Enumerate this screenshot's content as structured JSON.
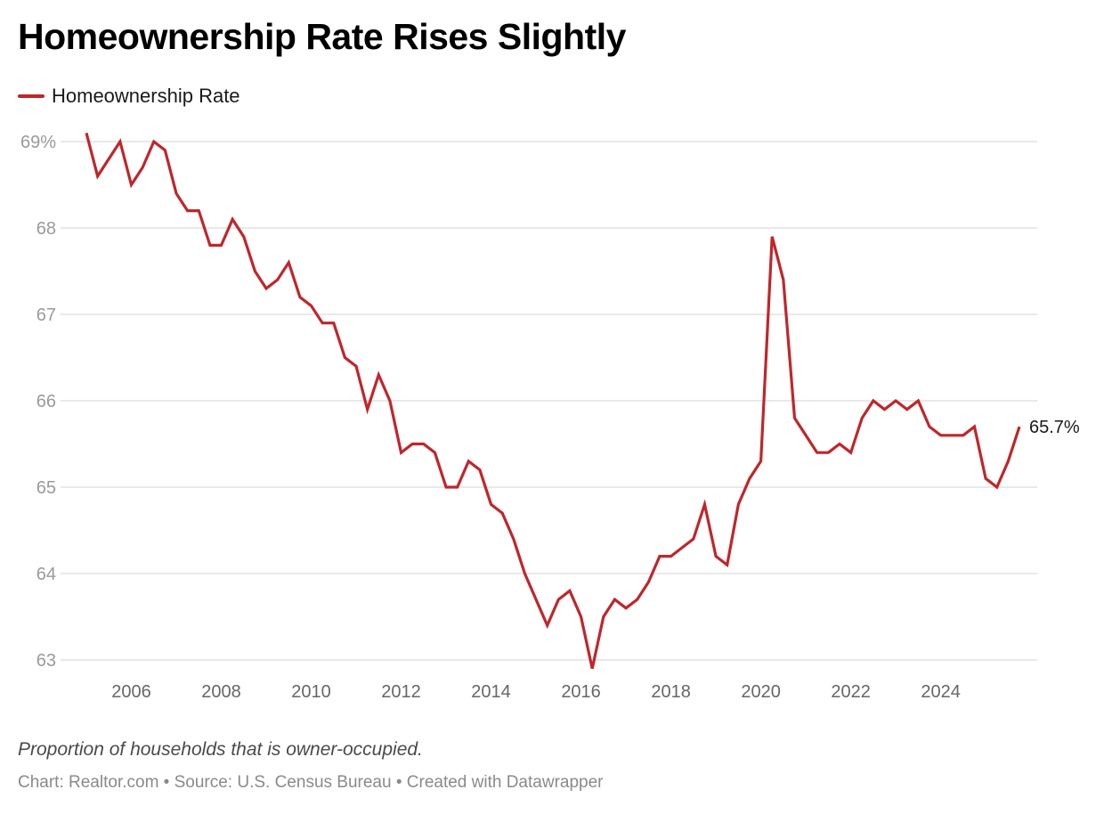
{
  "header": {
    "title": "Homeownership Rate Rises Slightly"
  },
  "legend": {
    "items": [
      {
        "label": "Homeownership Rate",
        "color": "#c0262b"
      }
    ]
  },
  "footer": {
    "note": "Proportion of households that is owner-occupied.",
    "source": "Chart: Realtor.com • Source: U.S. Census Bureau • Created with Datawrapper"
  },
  "chart_data": {
    "type": "line",
    "title": "Homeownership Rate Rises Slightly",
    "xlabel": "",
    "ylabel": "",
    "grid": true,
    "legend_position": "top-left",
    "ylim": [
      63,
      69
    ],
    "xlim": [
      2005,
      2025.75
    ],
    "yticks": [
      {
        "value": 69,
        "label": "69%"
      },
      {
        "value": 68,
        "label": "68"
      },
      {
        "value": 67,
        "label": "67"
      },
      {
        "value": 66,
        "label": "66"
      },
      {
        "value": 65,
        "label": "65"
      },
      {
        "value": 64,
        "label": "64"
      },
      {
        "value": 63,
        "label": "63"
      }
    ],
    "xticks": [
      {
        "value": 2006,
        "label": "2006"
      },
      {
        "value": 2008,
        "label": "2008"
      },
      {
        "value": 2010,
        "label": "2010"
      },
      {
        "value": 2012,
        "label": "2012"
      },
      {
        "value": 2014,
        "label": "2014"
      },
      {
        "value": 2016,
        "label": "2016"
      },
      {
        "value": 2018,
        "label": "2018"
      },
      {
        "value": 2020,
        "label": "2020"
      },
      {
        "value": 2022,
        "label": "2022"
      },
      {
        "value": 2024,
        "label": "2024"
      }
    ],
    "series": [
      {
        "name": "Homeownership Rate",
        "color": "#c0262b",
        "start_year": 2005,
        "frequency": "quarterly",
        "end_label": "65.7%",
        "values": [
          69.1,
          68.6,
          68.8,
          69.0,
          68.5,
          68.7,
          69.0,
          68.9,
          68.4,
          68.2,
          68.2,
          67.8,
          67.8,
          68.1,
          67.9,
          67.5,
          67.3,
          67.4,
          67.6,
          67.2,
          67.1,
          66.9,
          66.9,
          66.5,
          66.4,
          65.9,
          66.3,
          66.0,
          65.4,
          65.5,
          65.5,
          65.4,
          65.0,
          65.0,
          65.3,
          65.2,
          64.8,
          64.7,
          64.4,
          64.0,
          63.7,
          63.4,
          63.7,
          63.8,
          63.5,
          62.9,
          63.5,
          63.7,
          63.6,
          63.7,
          63.9,
          64.2,
          64.2,
          64.3,
          64.4,
          64.8,
          64.2,
          64.1,
          64.8,
          65.1,
          65.3,
          67.9,
          67.4,
          65.8,
          65.6,
          65.4,
          65.4,
          65.5,
          65.4,
          65.8,
          66.0,
          65.9,
          66.0,
          65.9,
          66.0,
          65.7,
          65.6,
          65.6,
          65.6,
          65.7,
          65.1,
          65.0,
          65.3,
          65.7
        ]
      }
    ]
  }
}
